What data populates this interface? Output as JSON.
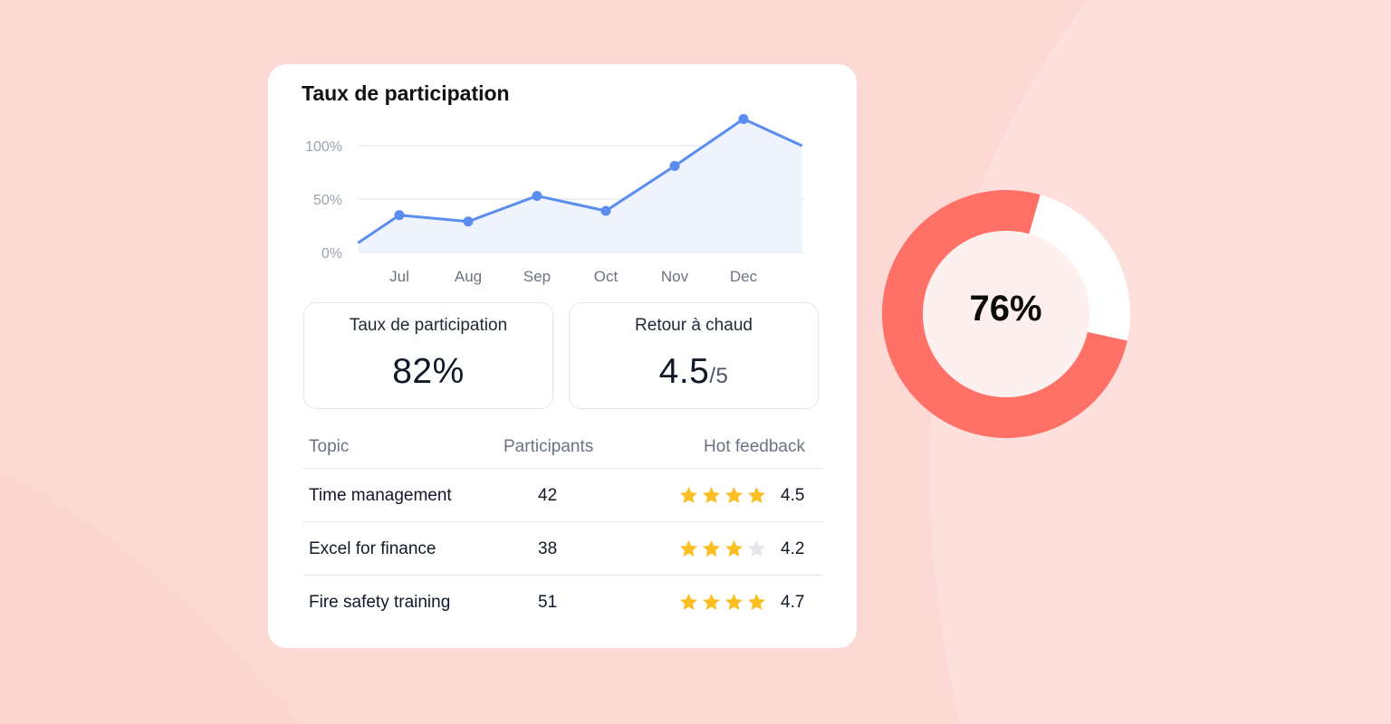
{
  "card": {
    "title": "Taux de participation"
  },
  "chart_data": [
    {
      "type": "area",
      "title": "Taux de participation",
      "categories": [
        "Jul",
        "Aug",
        "Sep",
        "Oct",
        "Nov",
        "Dec"
      ],
      "y_ticks": [
        "100%",
        "50%",
        "0%"
      ],
      "ylim": [
        0,
        100
      ],
      "grid": true,
      "series": [
        {
          "x": [
            5.4,
            6,
            7,
            8,
            9,
            10,
            11,
            11.85
          ],
          "values": [
            9,
            35,
            29,
            53,
            39,
            81,
            125,
            100
          ]
        }
      ],
      "colors": {
        "line": "#5b8def",
        "fill": "#eef3fe",
        "grid": "#e8eaee"
      }
    },
    {
      "type": "pie",
      "values": [
        76,
        24
      ],
      "center_label": "76%",
      "colors": [
        "#ff7066",
        "#ffffff"
      ]
    }
  ],
  "stats": [
    {
      "label": "Taux de participation",
      "value": "82%",
      "suffix": ""
    },
    {
      "label": "Retour à chaud",
      "value": "4.5",
      "suffix": "/5"
    }
  ],
  "table": {
    "headers": [
      "Topic",
      "Participants",
      "Hot feedback"
    ],
    "rows": [
      {
        "topic": "Time management",
        "participants": "42",
        "stars": 4,
        "rating": "4.5"
      },
      {
        "topic": "Excel for finance",
        "participants": "38",
        "stars": 3,
        "rating": "4.2"
      },
      {
        "topic": "Fire safety training",
        "participants": "51",
        "stars": 4,
        "rating": "4.7"
      }
    ],
    "star_max": 4,
    "star_color": "#fbbf24",
    "star_empty_color": "#e5e7eb"
  },
  "colors": {
    "background": "#fdd9d5",
    "donut_inner": "#fdf0ee"
  }
}
